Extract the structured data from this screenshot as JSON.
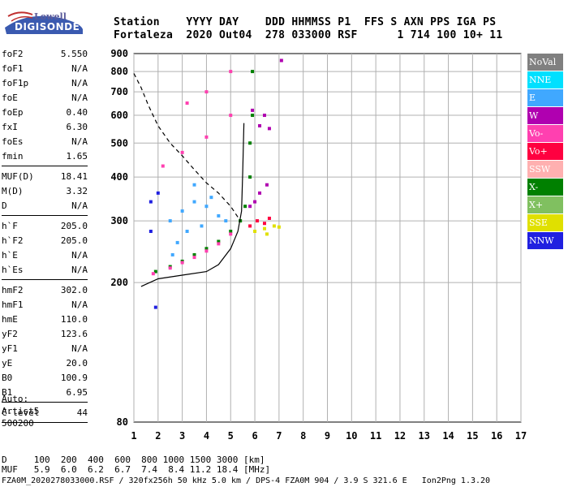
{
  "logo": {
    "line1": "Lowell",
    "line2": "DIGISONDE"
  },
  "header": {
    "line1": "Station    YYYY DAY    DDD HHMMSS P1  FFS S AXN PPS IGA PS",
    "line2": "Fortaleza  2020 Out04  278 033000 RSF      1 714 100 10+ 11"
  },
  "params": {
    "group1": [
      {
        "label": "foF2",
        "value": "5.550"
      },
      {
        "label": "foF1",
        "value": "N/A"
      },
      {
        "label": "foF1p",
        "value": "N/A"
      },
      {
        "label": "foE",
        "value": "N/A"
      },
      {
        "label": "foEp",
        "value": "0.40"
      },
      {
        "label": "fxI",
        "value": "6.30"
      },
      {
        "label": "foEs",
        "value": "N/A"
      },
      {
        "label": "fmin",
        "value": "1.65"
      }
    ],
    "group2": [
      {
        "label": "MUF(D)",
        "value": "18.41"
      },
      {
        "label": "M(D)",
        "value": "3.32"
      },
      {
        "label": "D",
        "value": "N/A"
      }
    ],
    "group3": [
      {
        "label": "h`F",
        "value": "205.0"
      },
      {
        "label": "h`F2",
        "value": "205.0"
      },
      {
        "label": "h`E",
        "value": "N/A"
      },
      {
        "label": "h`Es",
        "value": "N/A"
      }
    ],
    "group4": [
      {
        "label": "hmF2",
        "value": "302.0"
      },
      {
        "label": "hmF1",
        "value": "N/A"
      },
      {
        "label": "hmE",
        "value": "110.0"
      },
      {
        "label": "yF2",
        "value": "123.6"
      },
      {
        "label": "yF1",
        "value": "N/A"
      },
      {
        "label": "yE",
        "value": "20.0"
      },
      {
        "label": "B0",
        "value": "100.9"
      },
      {
        "label": "B1",
        "value": "6.95"
      }
    ],
    "group5": [
      {
        "label": "C-level",
        "value": "44"
      }
    ]
  },
  "auto": {
    "line1": "Auto:",
    "line2": "Artist5",
    "line3": "500200"
  },
  "footer": {
    "line1": "D     100  200  400  600  800 1000 1500 3000 [km]",
    "line2": "MUF   5.9  6.0  6.2  6.7  7.4  8.4 11.2 18.4 [MHz]",
    "line3": "FZA0M_2020278033000.RSF / 320fx256h 50 kHz 5.0 km / DPS-4 FZA0M 904 / 3.9 S 321.6 E   Ion2Png 1.3.20"
  },
  "legend": [
    {
      "label": "NoVal",
      "color": "#808080"
    },
    {
      "label": "NNE",
      "color": "#00e0ff"
    },
    {
      "label": "E",
      "color": "#40a8ff"
    },
    {
      "label": "W",
      "color": "#b000b0"
    },
    {
      "label": "Vo-",
      "color": "#ff40b0"
    },
    {
      "label": "Vo+",
      "color": "#ff0040"
    },
    {
      "label": "SSW",
      "color": "#ffb0b0"
    },
    {
      "label": "X-",
      "color": "#008000"
    },
    {
      "label": "X+",
      "color": "#80c060"
    },
    {
      "label": "SSE",
      "color": "#e0e000"
    },
    {
      "label": "NNW",
      "color": "#2020e0"
    }
  ],
  "chart_data": {
    "type": "scatter",
    "xlim": [
      1,
      17
    ],
    "ylim": [
      80,
      900
    ],
    "xticks": [
      "1",
      "2",
      "3",
      "4",
      "5",
      "6",
      "7",
      "8",
      "9",
      "10",
      "11",
      "12",
      "13",
      "14",
      "15",
      "16",
      "17"
    ],
    "yticks": [
      "80",
      "200",
      "300",
      "400",
      "500",
      "600",
      "700",
      "800",
      "900"
    ],
    "grid": true,
    "y_scale": "log",
    "series": [
      {
        "name": "E",
        "color": "#40a8ff",
        "points": [
          [
            2.5,
            300
          ],
          [
            3.0,
            320
          ],
          [
            3.5,
            340
          ],
          [
            4.0,
            330
          ],
          [
            4.5,
            310
          ],
          [
            3.2,
            280
          ],
          [
            2.8,
            260
          ],
          [
            3.8,
            290
          ],
          [
            4.2,
            350
          ],
          [
            3.5,
            380
          ],
          [
            2.6,
            240
          ],
          [
            4.8,
            300
          ]
        ]
      },
      {
        "name": "X-",
        "color": "#008000",
        "points": [
          [
            1.9,
            215
          ],
          [
            2.5,
            222
          ],
          [
            3.0,
            230
          ],
          [
            3.5,
            240
          ],
          [
            4.0,
            250
          ],
          [
            4.5,
            262
          ],
          [
            5.0,
            280
          ],
          [
            5.4,
            300
          ],
          [
            5.6,
            330
          ],
          [
            5.8,
            400
          ],
          [
            5.8,
            500
          ],
          [
            5.9,
            600
          ],
          [
            5.9,
            800
          ]
        ]
      },
      {
        "name": "Vo-",
        "color": "#ff40b0",
        "points": [
          [
            1.8,
            212
          ],
          [
            2.5,
            220
          ],
          [
            3.0,
            228
          ],
          [
            3.5,
            236
          ],
          [
            4.0,
            246
          ],
          [
            4.5,
            258
          ],
          [
            5.0,
            275
          ],
          [
            2.2,
            430
          ],
          [
            3.0,
            470
          ],
          [
            4.0,
            520
          ],
          [
            5.0,
            600
          ],
          [
            3.2,
            650
          ],
          [
            4.0,
            700
          ],
          [
            5.0,
            800
          ]
        ]
      },
      {
        "name": "W",
        "color": "#b000b0",
        "points": [
          [
            5.8,
            330
          ],
          [
            6.2,
            360
          ],
          [
            6.5,
            380
          ],
          [
            6.2,
            560
          ],
          [
            6.4,
            600
          ],
          [
            5.9,
            620
          ],
          [
            6.6,
            550
          ],
          [
            6.0,
            340
          ],
          [
            7.1,
            860
          ]
        ]
      },
      {
        "name": "SSE",
        "color": "#e0e000",
        "points": [
          [
            6.0,
            280
          ],
          [
            6.4,
            285
          ],
          [
            6.8,
            290
          ],
          [
            7.0,
            288
          ],
          [
            6.5,
            275
          ]
        ]
      },
      {
        "name": "Vo+",
        "color": "#ff0040",
        "points": [
          [
            5.8,
            290
          ],
          [
            6.1,
            300
          ],
          [
            6.4,
            295
          ],
          [
            6.6,
            305
          ]
        ]
      },
      {
        "name": "NNW",
        "color": "#2020e0",
        "points": [
          [
            2.0,
            360
          ],
          [
            1.7,
            340
          ],
          [
            1.7,
            280
          ],
          [
            1.9,
            170
          ]
        ]
      }
    ],
    "curves": [
      {
        "name": "profile",
        "style": "solid",
        "points": [
          [
            1.3,
            195
          ],
          [
            2.0,
            205
          ],
          [
            3.0,
            210
          ],
          [
            4.0,
            215
          ],
          [
            4.5,
            225
          ],
          [
            5.0,
            250
          ],
          [
            5.3,
            280
          ],
          [
            5.45,
            320
          ],
          [
            5.5,
            420
          ],
          [
            5.55,
            570
          ]
        ]
      },
      {
        "name": "trace",
        "style": "dashed",
        "points": [
          [
            1.0,
            790
          ],
          [
            1.3,
            720
          ],
          [
            1.6,
            640
          ],
          [
            2.0,
            560
          ],
          [
            2.5,
            500
          ],
          [
            3.0,
            460
          ],
          [
            3.5,
            420
          ],
          [
            4.0,
            385
          ],
          [
            4.5,
            360
          ],
          [
            5.0,
            330
          ],
          [
            5.4,
            300
          ]
        ]
      }
    ]
  }
}
